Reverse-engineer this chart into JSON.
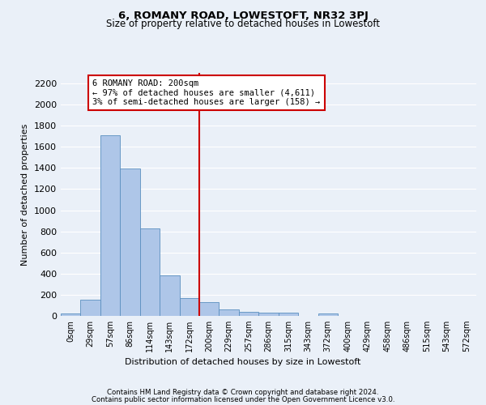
{
  "title": "6, ROMANY ROAD, LOWESTOFT, NR32 3PJ",
  "subtitle": "Size of property relative to detached houses in Lowestoft",
  "xlabel": "Distribution of detached houses by size in Lowestoft",
  "ylabel": "Number of detached properties",
  "bar_labels": [
    "0sqm",
    "29sqm",
    "57sqm",
    "86sqm",
    "114sqm",
    "143sqm",
    "172sqm",
    "200sqm",
    "229sqm",
    "257sqm",
    "286sqm",
    "315sqm",
    "343sqm",
    "372sqm",
    "400sqm",
    "429sqm",
    "458sqm",
    "486sqm",
    "515sqm",
    "543sqm",
    "572sqm"
  ],
  "bar_values": [
    20,
    155,
    1710,
    1395,
    830,
    380,
    165,
    130,
    65,
    38,
    30,
    28,
    0,
    20,
    0,
    0,
    0,
    0,
    0,
    0,
    0
  ],
  "bar_color": "#aec6e8",
  "bar_edge_color": "#5a8fc0",
  "background_color": "#eaf0f8",
  "grid_color": "#ffffff",
  "annotation_text": "6 ROMANY ROAD: 200sqm\n← 97% of detached houses are smaller (4,611)\n3% of semi-detached houses are larger (158) →",
  "annotation_box_color": "#ffffff",
  "annotation_border_color": "#cc0000",
  "vline_color": "#cc0000",
  "vline_idx": 7,
  "ylim": [
    0,
    2300
  ],
  "yticks": [
    0,
    200,
    400,
    600,
    800,
    1000,
    1200,
    1400,
    1600,
    1800,
    2000,
    2200
  ],
  "footer_line1": "Contains HM Land Registry data © Crown copyright and database right 2024.",
  "footer_line2": "Contains public sector information licensed under the Open Government Licence v3.0."
}
